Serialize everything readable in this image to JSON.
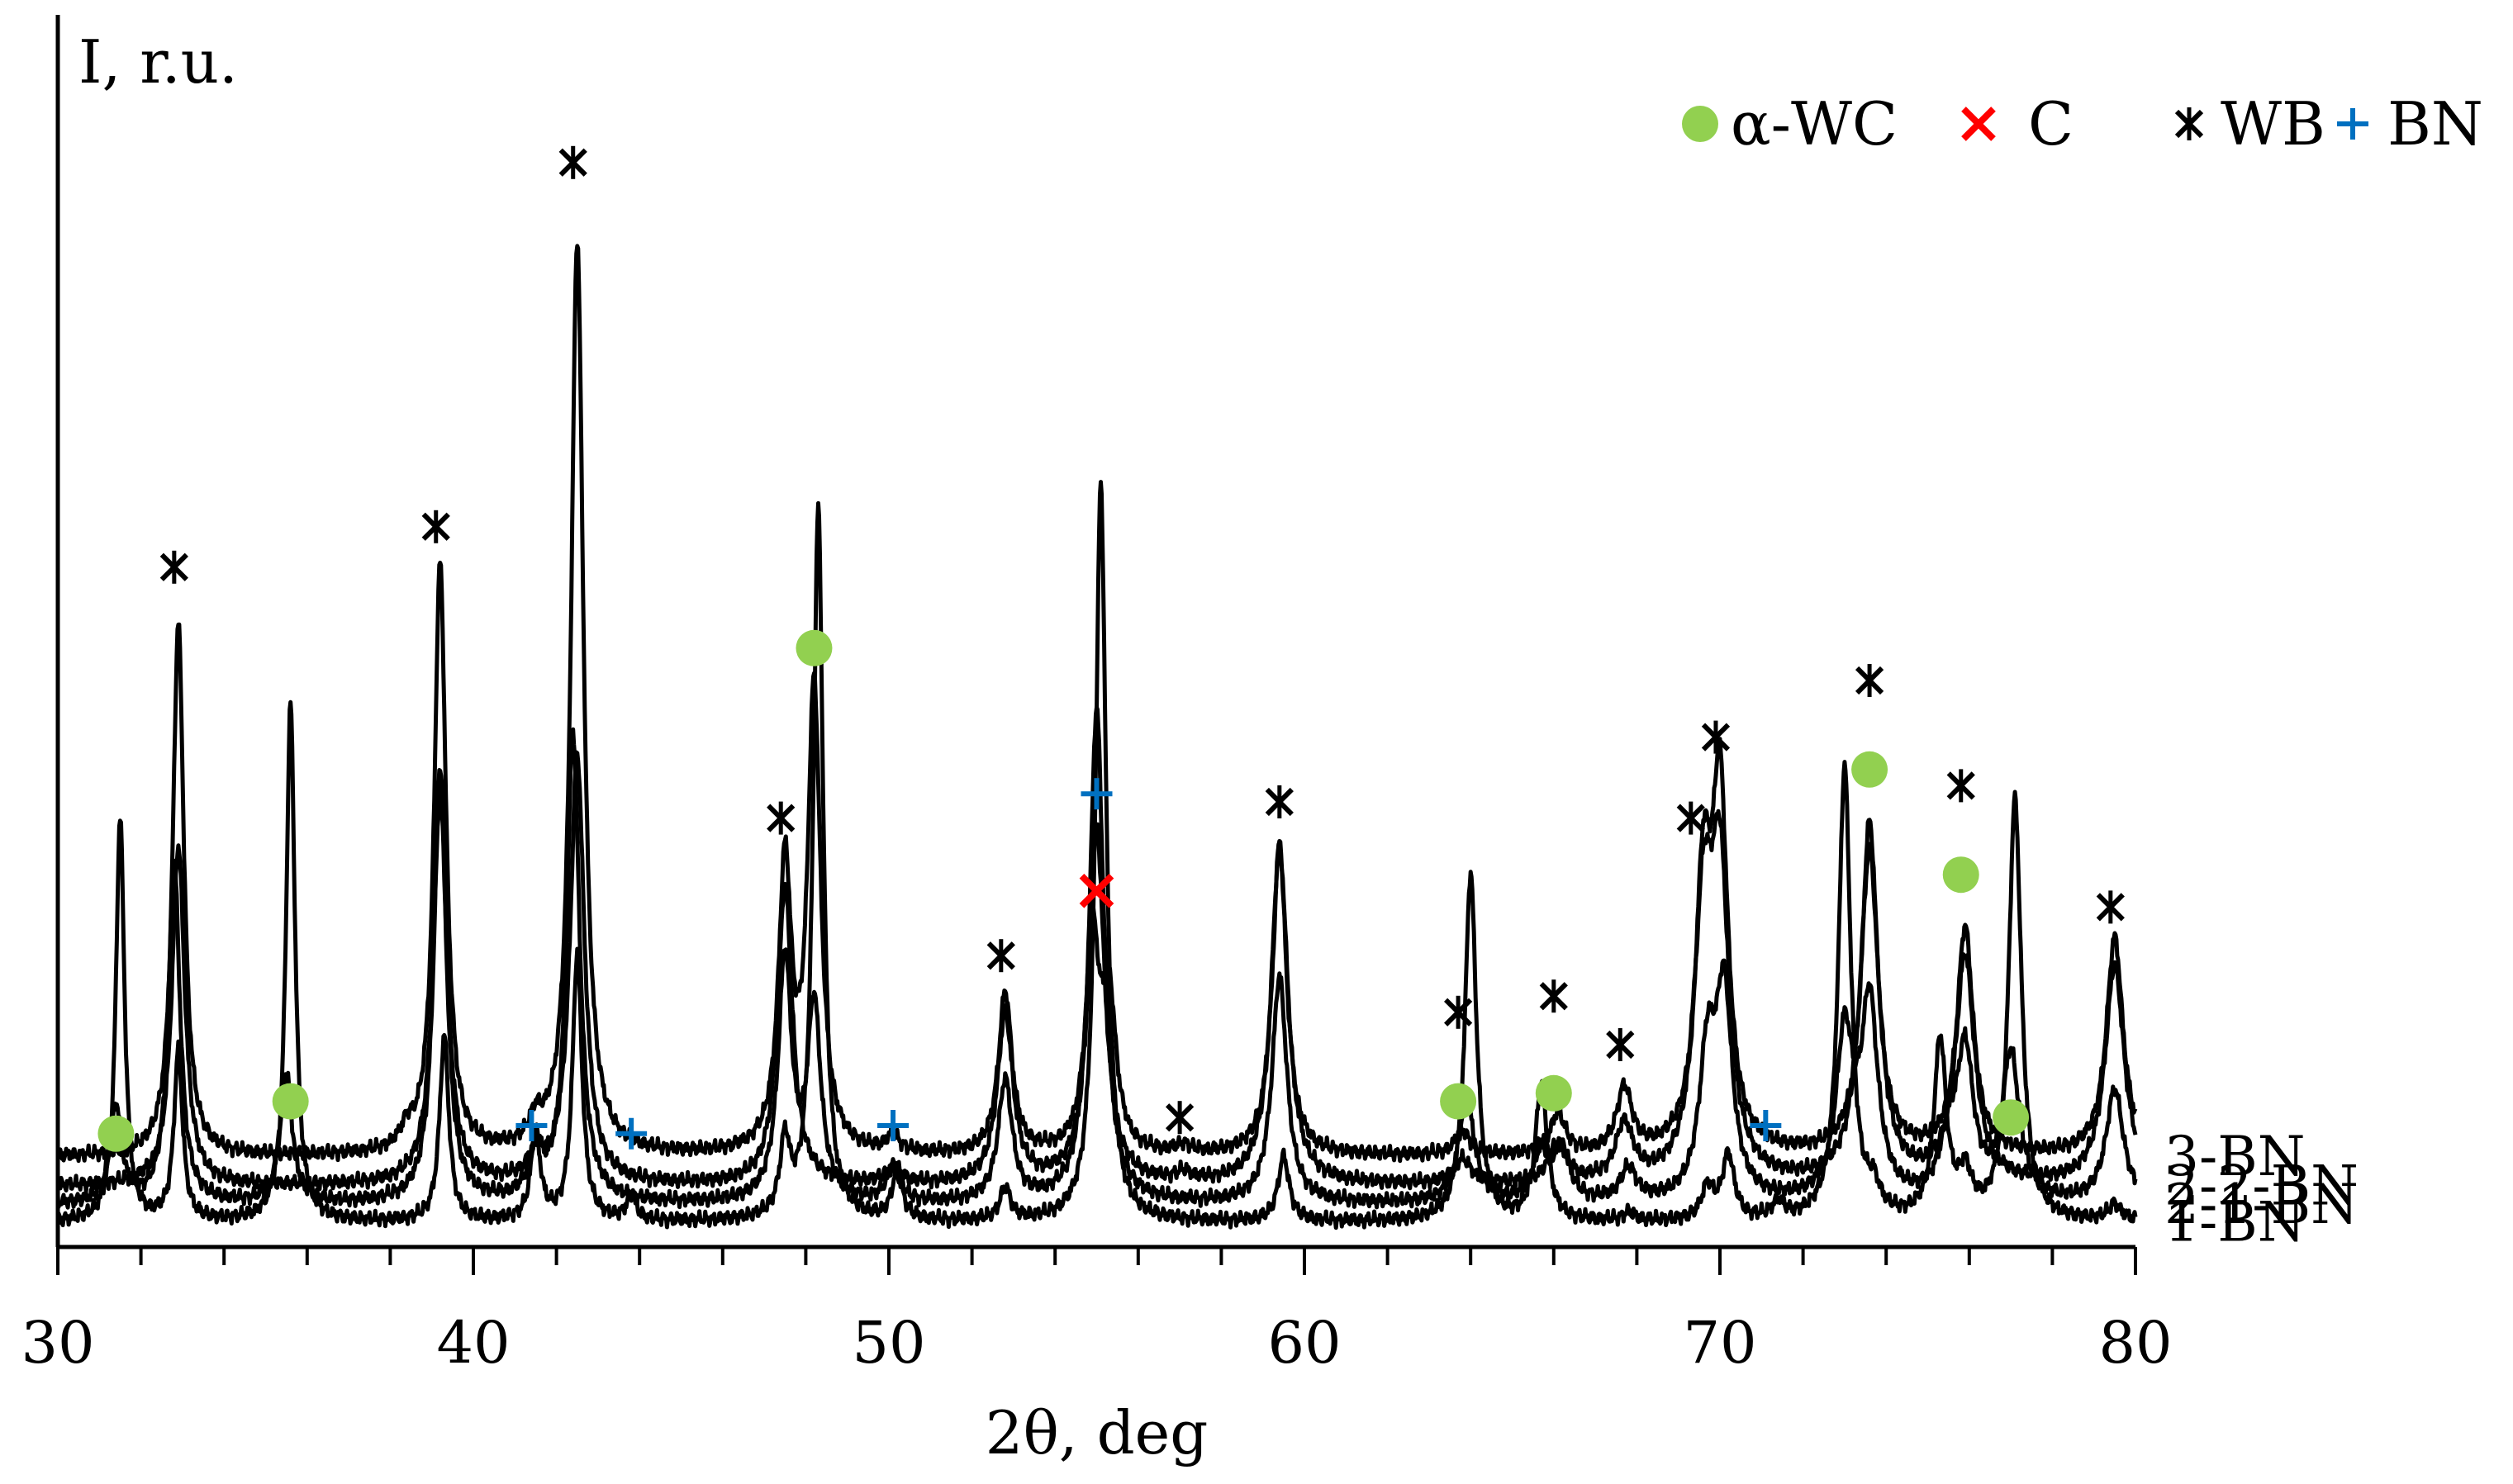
{
  "chart_data": {
    "type": "line",
    "title": "",
    "xlabel": "2θ, deg",
    "ylabel": "I, r.u.",
    "xlim": [
      30,
      80
    ],
    "xticks": [
      30,
      40,
      50,
      60,
      70,
      80
    ],
    "grid": false,
    "legend": {
      "placement": "top-right",
      "entries": [
        {
          "key": "wc",
          "label": "α-WC",
          "marker": "circle",
          "color": "#92d050"
        },
        {
          "key": "c",
          "label": "C",
          "marker": "cross",
          "color": "#ff0000"
        },
        {
          "key": "wb",
          "label": "WB",
          "marker": "asterisk",
          "color": "#000000"
        },
        {
          "key": "bn",
          "label": "BN",
          "marker": "plus",
          "color": "#0070c0"
        }
      ]
    },
    "series": [
      {
        "name": "1-BN",
        "baseline": 3.0,
        "wmul": 1.0,
        "peaks": [
          [
            31.5,
            50
          ],
          [
            32.9,
            21
          ],
          [
            35.6,
            64
          ],
          [
            39.3,
            23
          ],
          [
            41.5,
            11
          ],
          [
            42.5,
            33
          ],
          [
            43.8,
            3
          ],
          [
            47.5,
            9
          ],
          [
            48.3,
            88
          ],
          [
            50.2,
            6
          ],
          [
            52.8,
            4
          ],
          [
            55.1,
            91
          ],
          [
            59.5,
            8
          ],
          [
            64.0,
            43
          ],
          [
            65.7,
            17
          ],
          [
            67.8,
            1
          ],
          [
            69.7,
            4
          ],
          [
            70.2,
            8
          ],
          [
            71.4,
            2
          ],
          [
            73.0,
            56
          ],
          [
            73.7,
            3
          ],
          [
            75.3,
            22
          ],
          [
            75.9,
            5
          ],
          [
            77.1,
            52
          ],
          [
            79.5,
            2
          ]
        ]
      },
      {
        "name": "2-1-BN",
        "baseline": 5.2,
        "wmul": 1.35,
        "peaks": [
          [
            31.4,
            12
          ],
          [
            32.8,
            42
          ],
          [
            35.5,
            16
          ],
          [
            39.2,
            54
          ],
          [
            41.5,
            6
          ],
          [
            42.4,
            58
          ],
          [
            47.5,
            30
          ],
          [
            48.2,
            24
          ],
          [
            50.1,
            4
          ],
          [
            52.8,
            15
          ],
          [
            55.0,
            61
          ],
          [
            59.4,
            28
          ],
          [
            63.9,
            13
          ],
          [
            65.7,
            6
          ],
          [
            66.2,
            6
          ],
          [
            67.8,
            4
          ],
          [
            69.7,
            17
          ],
          [
            70.1,
            25
          ],
          [
            73.0,
            20
          ],
          [
            73.6,
            24
          ],
          [
            75.5,
            6
          ],
          [
            75.9,
            18
          ],
          [
            77.0,
            18
          ],
          [
            79.5,
            14
          ]
        ]
      },
      {
        "name": "2-2-BN",
        "baseline": 7.5,
        "wmul": 1.5,
        "peaks": [
          [
            32.9,
            42
          ],
          [
            39.2,
            48
          ],
          [
            41.5,
            3
          ],
          [
            42.5,
            53
          ],
          [
            47.5,
            37
          ],
          [
            50.1,
            2
          ],
          [
            52.8,
            21
          ],
          [
            55.0,
            44
          ],
          [
            57.1,
            1
          ],
          [
            59.4,
            42
          ],
          [
            63.8,
            3
          ],
          [
            66.1,
            5
          ],
          [
            67.7,
            7
          ],
          [
            69.6,
            31
          ],
          [
            70.0,
            36
          ],
          [
            73.6,
            41
          ],
          [
            75.9,
            28
          ],
          [
            79.5,
            27
          ]
        ]
      },
      {
        "name": "3-BN",
        "baseline": 11.1,
        "wmul": 1.3,
        "peaks": [
          [
            32.9,
            66
          ],
          [
            38.4,
            2
          ],
          [
            39.2,
            73
          ],
          [
            41.5,
            3
          ],
          [
            42.5,
            113
          ],
          [
            47.5,
            35
          ],
          [
            48.2,
            57
          ],
          [
            50.1,
            2
          ],
          [
            52.8,
            20
          ],
          [
            54.9,
            26
          ],
          [
            55.3,
            18
          ],
          [
            57.1,
            1
          ],
          [
            59.4,
            38
          ],
          [
            63.8,
            3
          ],
          [
            66.1,
            5
          ],
          [
            67.7,
            8
          ],
          [
            69.6,
            31
          ],
          [
            70.0,
            43
          ],
          [
            73.6,
            41
          ],
          [
            75.9,
            28
          ],
          [
            79.5,
            27
          ]
        ]
      }
    ],
    "annotations": [
      {
        "type": "wb",
        "x": 32.8,
        "y": 84
      },
      {
        "type": "wb",
        "x": 39.1,
        "y": 89
      },
      {
        "type": "wb",
        "x": 42.4,
        "y": 134
      },
      {
        "type": "wb",
        "x": 47.4,
        "y": 53
      },
      {
        "type": "wb",
        "x": 52.7,
        "y": 36
      },
      {
        "type": "wb",
        "x": 57.0,
        "y": 16
      },
      {
        "type": "wb",
        "x": 59.4,
        "y": 55
      },
      {
        "type": "wb",
        "x": 63.7,
        "y": 29
      },
      {
        "type": "wb",
        "x": 66.0,
        "y": 31
      },
      {
        "type": "wb",
        "x": 67.6,
        "y": 25
      },
      {
        "type": "wb",
        "x": 69.3,
        "y": 53
      },
      {
        "type": "wb",
        "x": 69.9,
        "y": 63
      },
      {
        "type": "wb",
        "x": 73.6,
        "y": 70
      },
      {
        "type": "wb",
        "x": 75.8,
        "y": 57
      },
      {
        "type": "wb",
        "x": 79.4,
        "y": 42
      },
      {
        "type": "wc",
        "x": 31.4,
        "y": 14
      },
      {
        "type": "wc",
        "x": 35.6,
        "y": 18
      },
      {
        "type": "wc",
        "x": 48.2,
        "y": 74
      },
      {
        "type": "wc",
        "x": 63.7,
        "y": 18
      },
      {
        "type": "wc",
        "x": 66.0,
        "y": 19
      },
      {
        "type": "wc",
        "x": 73.6,
        "y": 59
      },
      {
        "type": "wc",
        "x": 75.8,
        "y": 46
      },
      {
        "type": "wc",
        "x": 77.0,
        "y": 16
      },
      {
        "type": "bn",
        "x": 41.4,
        "y": 15
      },
      {
        "type": "bn",
        "x": 43.8,
        "y": 14
      },
      {
        "type": "bn",
        "x": 50.1,
        "y": 15
      },
      {
        "type": "bn",
        "x": 55.0,
        "y": 56
      },
      {
        "type": "bn",
        "x": 71.1,
        "y": 15
      },
      {
        "type": "c",
        "x": 55.0,
        "y": 44
      }
    ]
  }
}
